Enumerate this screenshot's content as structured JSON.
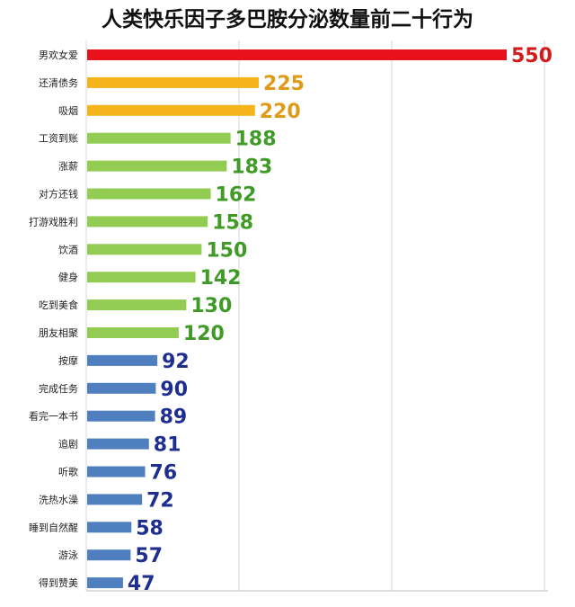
{
  "chart_data": {
    "type": "bar",
    "orientation": "horizontal",
    "title": "人类快乐因子多巴胺分泌数量前二十行为",
    "categories": [
      "男欢女爱",
      "还清债务",
      "吸烟",
      "工资到账",
      "涨薪",
      "对方还钱",
      "打游戏胜利",
      "饮酒",
      "健身",
      "吃到美食",
      "朋友相聚",
      "按摩",
      "完成任务",
      "看完一本书",
      "追剧",
      "听歌",
      "洗热水澡",
      "睡到自然醒",
      "游泳",
      "得到赞美"
    ],
    "values": [
      550,
      225,
      220,
      188,
      183,
      162,
      158,
      150,
      142,
      130,
      120,
      92,
      90,
      89,
      81,
      76,
      72,
      58,
      57,
      47
    ],
    "bar_colors": [
      "#e8121b",
      "#f4b41a",
      "#f4b41a",
      "#92cc52",
      "#92cc52",
      "#92cc52",
      "#92cc52",
      "#92cc52",
      "#92cc52",
      "#92cc52",
      "#92cc52",
      "#4f7fbf",
      "#4f7fbf",
      "#4f7fbf",
      "#4f7fbf",
      "#4f7fbf",
      "#4f7fbf",
      "#4f7fbf",
      "#4f7fbf",
      "#4f7fbf"
    ],
    "label_colors": [
      "#d31a1e",
      "#e09a1a",
      "#e09a1a",
      "#3f9a26",
      "#3f9a26",
      "#3f9a26",
      "#3f9a26",
      "#3f9a26",
      "#3f9a26",
      "#3f9a26",
      "#3f9a26",
      "#1f2f8f",
      "#1f2f8f",
      "#1f2f8f",
      "#1f2f8f",
      "#1f2f8f",
      "#1f2f8f",
      "#1f2f8f",
      "#1f2f8f",
      "#1f2f8f"
    ],
    "xlim": [
      0,
      550
    ],
    "grid": true,
    "legend": "none"
  }
}
